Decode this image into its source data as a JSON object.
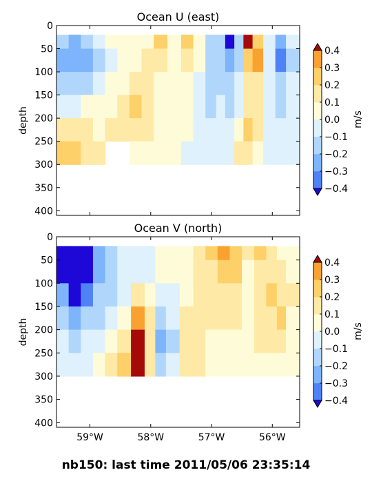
{
  "figure": {
    "title": "nb150: last time 2011/05/06 23:35:14"
  },
  "colorbar": {
    "levels": [
      -0.4,
      -0.3,
      -0.2,
      -0.1,
      0.0,
      0.1,
      0.2,
      0.3,
      0.4
    ],
    "tick_labels": [
      "−0.4",
      "−0.3",
      "−0.2",
      "−0.1",
      "0.0",
      "0.1",
      "0.2",
      "0.3",
      "0.4"
    ],
    "colors": [
      "#3c46f0",
      "#4f82f5",
      "#7db4fb",
      "#b0d6fc",
      "#def1fd",
      "#fefcd8",
      "#fee9a6",
      "#fdd06a",
      "#f9a131",
      "#f06a1c",
      "#d21e12"
    ],
    "under_color": "#1e08d8",
    "over_color": "#a60a08",
    "label": "m/s"
  },
  "chart_data": [
    {
      "type": "heatmap",
      "title": "Ocean U (east)",
      "xlabel": "",
      "ylabel": "depth",
      "xlim": [
        -59.55,
        -55.55
      ],
      "ylim": [
        410,
        0
      ],
      "x_ticks": [
        -59,
        -58,
        -57,
        -56
      ],
      "x_tick_labels": [
        "59°W",
        "58°W",
        "57°W",
        "56°W"
      ],
      "show_x_tick_labels": false,
      "y_ticks": [
        0,
        50,
        100,
        150,
        200,
        250,
        300,
        350,
        400
      ],
      "y_tick_labels": [
        "0",
        "50",
        "100",
        "150",
        "200",
        "250",
        "300",
        "350",
        "400"
      ],
      "units": "m/s",
      "columns": [
        {
          "x": -59.45,
          "v": [
            -0.15,
            -0.25,
            -0.18,
            -0.08,
            0.15,
            0.22
          ]
        },
        {
          "x": -59.25,
          "v": [
            -0.22,
            -0.3,
            -0.2,
            -0.05,
            0.12,
            0.2
          ]
        },
        {
          "x": -59.05,
          "v": [
            -0.15,
            -0.25,
            -0.12,
            0.02,
            0.1,
            0.15
          ]
        },
        {
          "x": -58.85,
          "v": [
            -0.08,
            -0.15,
            -0.05,
            0.05,
            0.08,
            0.1
          ]
        },
        {
          "x": -58.65,
          "v": [
            0.05,
            -0.02,
            0.05,
            0.08,
            0.1
          ]
        },
        {
          "x": -58.45,
          "v": [
            0.05,
            0.05,
            0.05,
            0.12,
            0.12
          ]
        },
        {
          "x": -58.25,
          "v": [
            0.08,
            0.08,
            0.1,
            0.2,
            0.15,
            0.08
          ]
        },
        {
          "x": -58.05,
          "v": [
            0.05,
            0.15,
            0.12,
            0.15,
            0.1,
            0.05
          ]
        },
        {
          "x": -57.85,
          "v": [
            0.25,
            0.15,
            0.08,
            0.05,
            0.08,
            0.05
          ]
        },
        {
          "x": -57.6,
          "v": [
            0.05,
            0.05,
            0.05,
            0.05,
            0.05,
            0.05
          ]
        },
        {
          "x": -57.4,
          "v": [
            0.25,
            0.12,
            0.05,
            0.05,
            0.02,
            -0.02
          ]
        },
        {
          "x": -57.2,
          "v": [
            0.08,
            0.02,
            -0.05,
            -0.02,
            -0.08,
            -0.1
          ]
        },
        {
          "x": -57.0,
          "v": [
            -0.15,
            -0.15,
            -0.2,
            -0.12,
            -0.1,
            -0.08
          ]
        },
        {
          "x": -56.85,
          "v": [
            -0.12,
            -0.2,
            -0.12,
            -0.1,
            -0.05,
            -0.05
          ]
        },
        {
          "x": -56.7,
          "v": [
            -0.45,
            -0.25,
            -0.15,
            -0.12,
            -0.1,
            -0.1
          ]
        },
        {
          "x": -56.55,
          "v": [
            -0.2,
            -0.18,
            -0.1,
            -0.05,
            0.02,
            0.15
          ]
        },
        {
          "x": -56.4,
          "v": [
            0.42,
            0.25,
            0.12,
            0.1,
            0.2,
            0.15
          ]
        },
        {
          "x": -56.25,
          "v": [
            0.25,
            0.3,
            0.15,
            0.1,
            0.1,
            0.05
          ]
        },
        {
          "x": -56.05,
          "v": [
            -0.05,
            -0.05,
            -0.1,
            -0.1,
            -0.05,
            -0.08
          ]
        },
        {
          "x": -55.85,
          "v": [
            -0.3,
            -0.35,
            -0.2,
            -0.15,
            -0.1,
            -0.1
          ]
        },
        {
          "x": -55.7,
          "v": [
            -0.1,
            -0.15,
            -0.1,
            -0.1,
            -0.08,
            -0.08
          ]
        }
      ]
    },
    {
      "type": "heatmap",
      "title": "Ocean V (north)",
      "xlabel": "",
      "ylabel": "depth",
      "xlim": [
        -59.55,
        -55.55
      ],
      "ylim": [
        410,
        0
      ],
      "x_ticks": [
        -59,
        -58,
        -57,
        -56
      ],
      "x_tick_labels": [
        "59°W",
        "58°W",
        "57°W",
        "56°W"
      ],
      "show_x_tick_labels": true,
      "y_ticks": [
        0,
        50,
        100,
        150,
        200,
        250,
        300,
        350,
        400
      ],
      "y_tick_labels": [
        "0",
        "50",
        "100",
        "150",
        "200",
        "250",
        "300",
        "350",
        "400"
      ],
      "units": "m/s",
      "columns": [
        {
          "x": -59.45,
          "v": [
            -0.45,
            -0.45,
            -0.3,
            -0.2,
            -0.1,
            -0.05
          ]
        },
        {
          "x": -59.25,
          "v": [
            -0.5,
            -0.5,
            -0.45,
            -0.25,
            -0.15,
            -0.1
          ]
        },
        {
          "x": -59.05,
          "v": [
            -0.5,
            -0.5,
            -0.4,
            -0.2,
            -0.1,
            -0.05
          ]
        },
        {
          "x": -58.85,
          "v": [
            -0.3,
            -0.25,
            -0.2,
            -0.15,
            -0.05,
            0.02
          ]
        },
        {
          "x": -58.65,
          "v": [
            -0.2,
            -0.15,
            -0.15,
            -0.08,
            0.05,
            0.1
          ]
        },
        {
          "x": -58.45,
          "v": [
            -0.1,
            -0.1,
            -0.05,
            0.05,
            0.15,
            0.25
          ]
        },
        {
          "x": -58.2,
          "v": [
            -0.05,
            -0.05,
            0.15,
            0.3,
            0.45,
            0.5
          ]
        },
        {
          "x": -58.0,
          "v": [
            -0.05,
            -0.05,
            0.05,
            0.1,
            0.15,
            0.15
          ]
        },
        {
          "x": -57.85,
          "v": [
            0.05,
            0.05,
            -0.1,
            -0.15,
            -0.3,
            -0.2
          ]
        },
        {
          "x": -57.65,
          "v": [
            0.05,
            0.0,
            -0.05,
            -0.1,
            -0.15,
            -0.1
          ]
        },
        {
          "x": -57.4,
          "v": [
            0.05,
            0.05,
            0.05,
            0.1,
            0.15,
            0.12
          ]
        },
        {
          "x": -57.2,
          "v": [
            0.12,
            0.1,
            0.1,
            0.12,
            0.15,
            0.1
          ]
        },
        {
          "x": -57.0,
          "v": [
            0.2,
            0.15,
            0.12,
            0.1,
            0.08,
            0.05
          ]
        },
        {
          "x": -56.8,
          "v": [
            0.3,
            0.25,
            0.15,
            0.1,
            0.05,
            0.05
          ]
        },
        {
          "x": -56.6,
          "v": [
            0.2,
            0.2,
            0.15,
            0.12,
            0.08,
            0.05
          ]
        },
        {
          "x": -56.4,
          "v": [
            0.1,
            0.08,
            0.05,
            0.08,
            0.05,
            0.05
          ]
        },
        {
          "x": -56.2,
          "v": [
            0.2,
            0.15,
            0.12,
            0.15,
            0.1,
            0.08
          ]
        },
        {
          "x": -56.0,
          "v": [
            0.1,
            0.15,
            0.2,
            0.15,
            0.1,
            0.05
          ]
        },
        {
          "x": -55.85,
          "v": [
            0.05,
            0.1,
            0.15,
            0.2,
            0.12,
            0.08
          ]
        },
        {
          "x": -55.7,
          "v": [
            0.0,
            0.05,
            0.1,
            0.08,
            0.05,
            0.05
          ]
        }
      ]
    }
  ]
}
